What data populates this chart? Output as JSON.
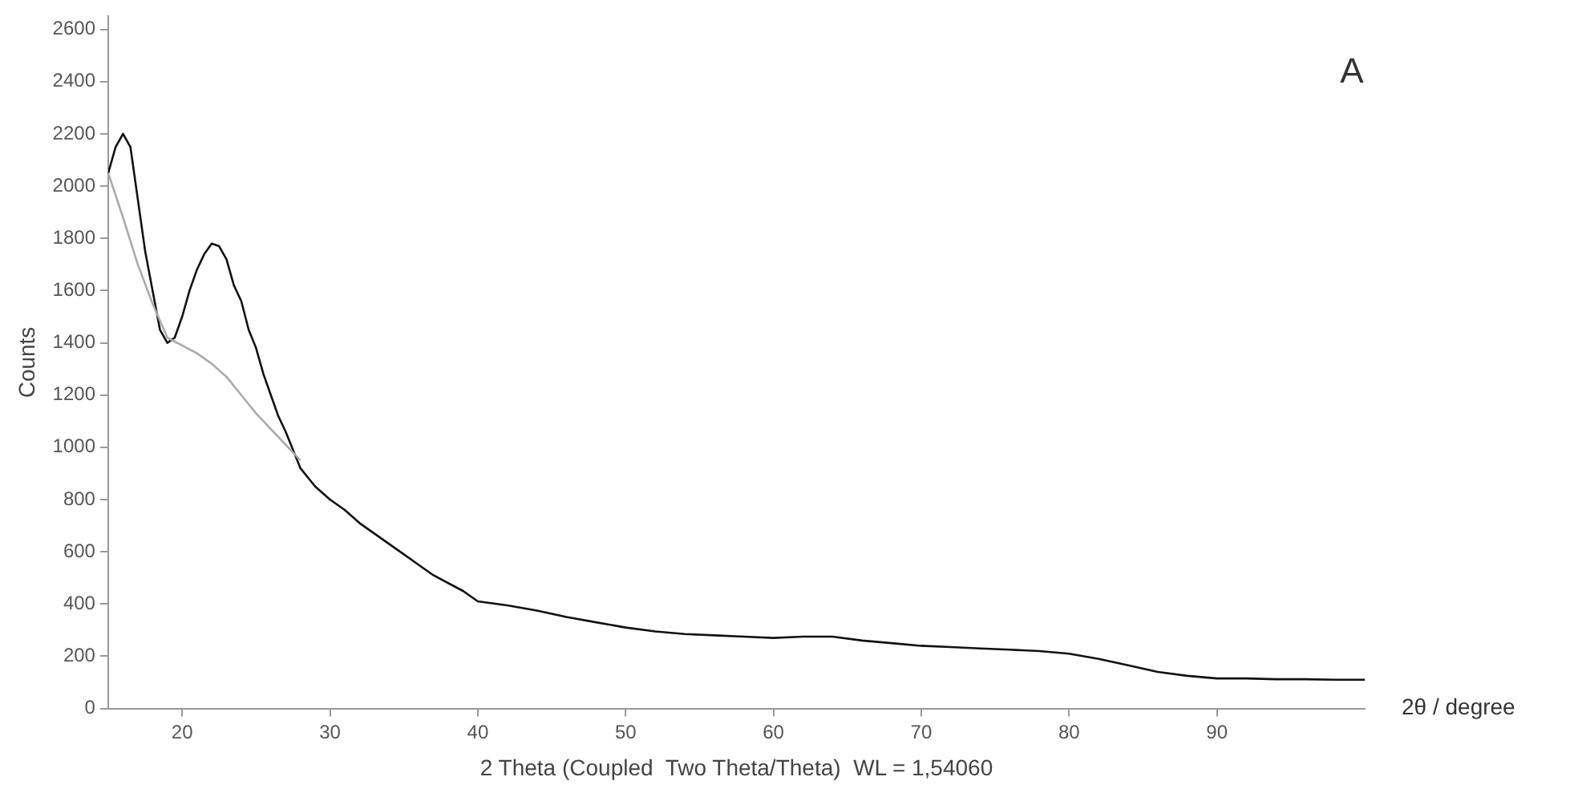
{
  "chart_data": {
    "type": "line",
    "xlabel": "2 Theta (Coupled  Two Theta/Theta)  WL = 1,54060",
    "ylabel": "Counts",
    "annotations": [
      "A",
      "2θ / degree"
    ],
    "xlim": [
      15,
      100
    ],
    "xticks": [
      20,
      30,
      40,
      50,
      60,
      70,
      80,
      90
    ],
    "ylim": [
      0,
      2650
    ],
    "yticks": [
      0,
      200,
      400,
      600,
      800,
      1000,
      1200,
      1400,
      1600,
      1800,
      2000,
      2200,
      2400,
      2600
    ],
    "grid": false,
    "legend": false,
    "marker": "none",
    "series": [
      {
        "color": "#aaaaaa",
        "x": [
          15,
          16,
          17,
          18,
          19,
          20,
          21,
          22,
          23,
          24,
          25,
          26,
          27,
          28
        ],
        "values": [
          2050,
          1880,
          1700,
          1550,
          1420,
          1390,
          1360,
          1320,
          1270,
          1200,
          1130,
          1070,
          1010,
          950
        ]
      },
      {
        "color": "#111111",
        "x": [
          15,
          15.5,
          16,
          16.5,
          17,
          17.5,
          18,
          18.5,
          19,
          19.5,
          20,
          20.5,
          21,
          21.5,
          22,
          22.5,
          23,
          23.5,
          24,
          24.5,
          25,
          25.5,
          26,
          26.5,
          27,
          27.5,
          28,
          29,
          30,
          31,
          32,
          33,
          34,
          35,
          36,
          37,
          38,
          39,
          40,
          42,
          44,
          46,
          48,
          50,
          52,
          54,
          56,
          58,
          60,
          62,
          64,
          66,
          68,
          70,
          72,
          74,
          76,
          78,
          80,
          82,
          84,
          86,
          88,
          90,
          92,
          94,
          96,
          98,
          100
        ],
        "values": [
          2050,
          2150,
          2200,
          2150,
          1950,
          1750,
          1600,
          1450,
          1400,
          1420,
          1500,
          1600,
          1680,
          1740,
          1780,
          1770,
          1720,
          1620,
          1560,
          1450,
          1380,
          1280,
          1200,
          1120,
          1060,
          990,
          920,
          850,
          800,
          760,
          710,
          670,
          630,
          590,
          550,
          510,
          480,
          450,
          410,
          395,
          375,
          350,
          330,
          310,
          295,
          285,
          280,
          275,
          270,
          275,
          275,
          260,
          250,
          240,
          235,
          230,
          225,
          220,
          210,
          190,
          165,
          140,
          125,
          115,
          115,
          112,
          112,
          110,
          110
        ]
      }
    ]
  }
}
